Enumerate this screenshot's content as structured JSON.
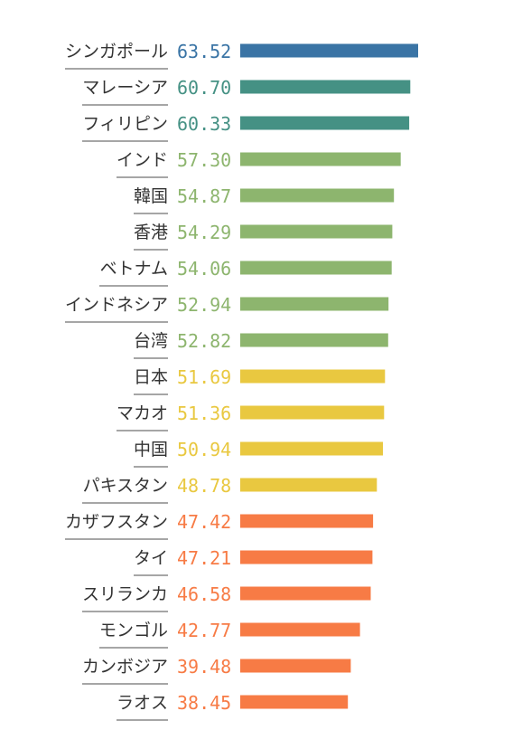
{
  "chart_data": {
    "type": "bar",
    "orientation": "horizontal",
    "categories": [
      "シンガポール",
      "マレーシア",
      "フィリピン",
      "インド",
      "韓国",
      "香港",
      "ベトナム",
      "インドネシア",
      "台湾",
      "日本",
      "マカオ",
      "中国",
      "パキスタン",
      "カザフスタン",
      "タイ",
      "スリランカ",
      "モンゴル",
      "カンボジア",
      "ラオス"
    ],
    "values": [
      63.52,
      60.7,
      60.33,
      57.3,
      54.87,
      54.29,
      54.06,
      52.94,
      52.82,
      51.69,
      51.36,
      50.94,
      48.78,
      47.42,
      47.21,
      46.58,
      42.77,
      39.48,
      38.45
    ],
    "value_labels": [
      "63.52",
      "60.70",
      "60.33",
      "57.30",
      "54.87",
      "54.29",
      "54.06",
      "52.94",
      "52.82",
      "51.69",
      "51.36",
      "50.94",
      "48.78",
      "47.42",
      "47.21",
      "46.58",
      "42.77",
      "39.48",
      "38.45"
    ],
    "color_groups": [
      "blue",
      "teal",
      "teal",
      "green",
      "green",
      "green",
      "green",
      "green",
      "green",
      "yellow",
      "yellow",
      "yellow",
      "yellow",
      "orange",
      "orange",
      "orange",
      "orange",
      "orange",
      "orange"
    ],
    "colors": {
      "blue": "#3a74a5",
      "teal": "#459184",
      "green": "#8db56e",
      "yellow": "#e9c840",
      "orange": "#f77b45"
    },
    "title": "",
    "xlabel": "",
    "ylabel": "",
    "xlim": [
      0,
      100
    ],
    "grid": false,
    "legend": "none"
  }
}
